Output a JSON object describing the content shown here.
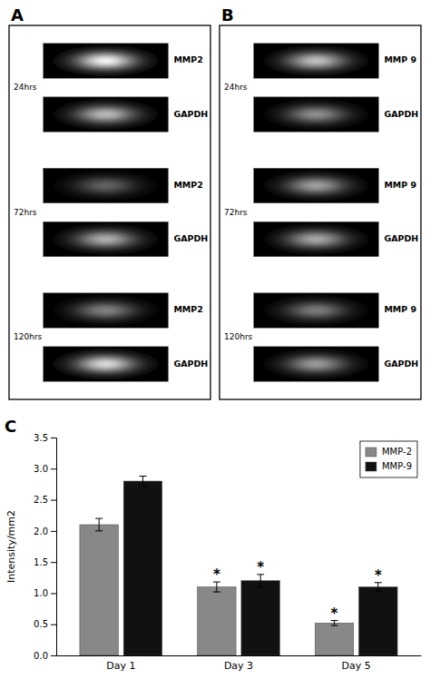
{
  "chart_data": [
    {
      "type": "gel",
      "title": "A",
      "time_labels": [
        "24hrs",
        "72hrs",
        "120hrs"
      ],
      "bands": [
        {
          "label": "MMP2",
          "brightness": 0.95
        },
        {
          "label": "GAPDH",
          "brightness": 0.72
        },
        {
          "label": "MMP2",
          "brightness": 0.38
        },
        {
          "label": "GAPDH",
          "brightness": 0.68
        },
        {
          "label": "MMP2",
          "brightness": 0.5
        },
        {
          "label": "GAPDH",
          "brightness": 0.85
        }
      ]
    },
    {
      "type": "gel",
      "title": "B",
      "time_labels": [
        "24hrs",
        "72hrs",
        "120hrs"
      ],
      "bands": [
        {
          "label": "MMP 9",
          "brightness": 0.75
        },
        {
          "label": "GAPDH",
          "brightness": 0.55
        },
        {
          "label": "MMP 9",
          "brightness": 0.62
        },
        {
          "label": "GAPDH",
          "brightness": 0.65
        },
        {
          "label": "MMP 9",
          "brightness": 0.48
        },
        {
          "label": "GAPDH",
          "brightness": 0.6
        }
      ]
    },
    {
      "type": "bar",
      "title": "C",
      "categories": [
        "Day 1",
        "Day 3",
        "Day 5"
      ],
      "series": [
        {
          "name": "MMP-2",
          "color": "#888888",
          "values": [
            2.1,
            1.1,
            0.52
          ],
          "errors": [
            0.1,
            0.08,
            0.04
          ]
        },
        {
          "name": "MMP-9",
          "color": "#111111",
          "values": [
            2.8,
            1.2,
            1.1
          ],
          "errors": [
            0.08,
            0.1,
            0.07
          ]
        }
      ],
      "annotations": [
        {
          "text": "*",
          "series": 0,
          "index": 1
        },
        {
          "text": "*",
          "series": 1,
          "index": 1
        },
        {
          "text": "*",
          "series": 0,
          "index": 2
        },
        {
          "text": "*",
          "series": 1,
          "index": 2
        }
      ],
      "y_label": "Intensity/mm2",
      "ylim": [
        0,
        3.5
      ],
      "yticks": [
        {
          "value": 0,
          "label": "0.0"
        },
        0.5,
        {
          "value": 1.0,
          "label": "1.0"
        },
        1.5,
        {
          "value": 2.0,
          "label": "2.0"
        },
        2.5,
        {
          "value": 3.0,
          "label": "3.0"
        },
        3.5
      ],
      "legend": "upper right"
    }
  ]
}
